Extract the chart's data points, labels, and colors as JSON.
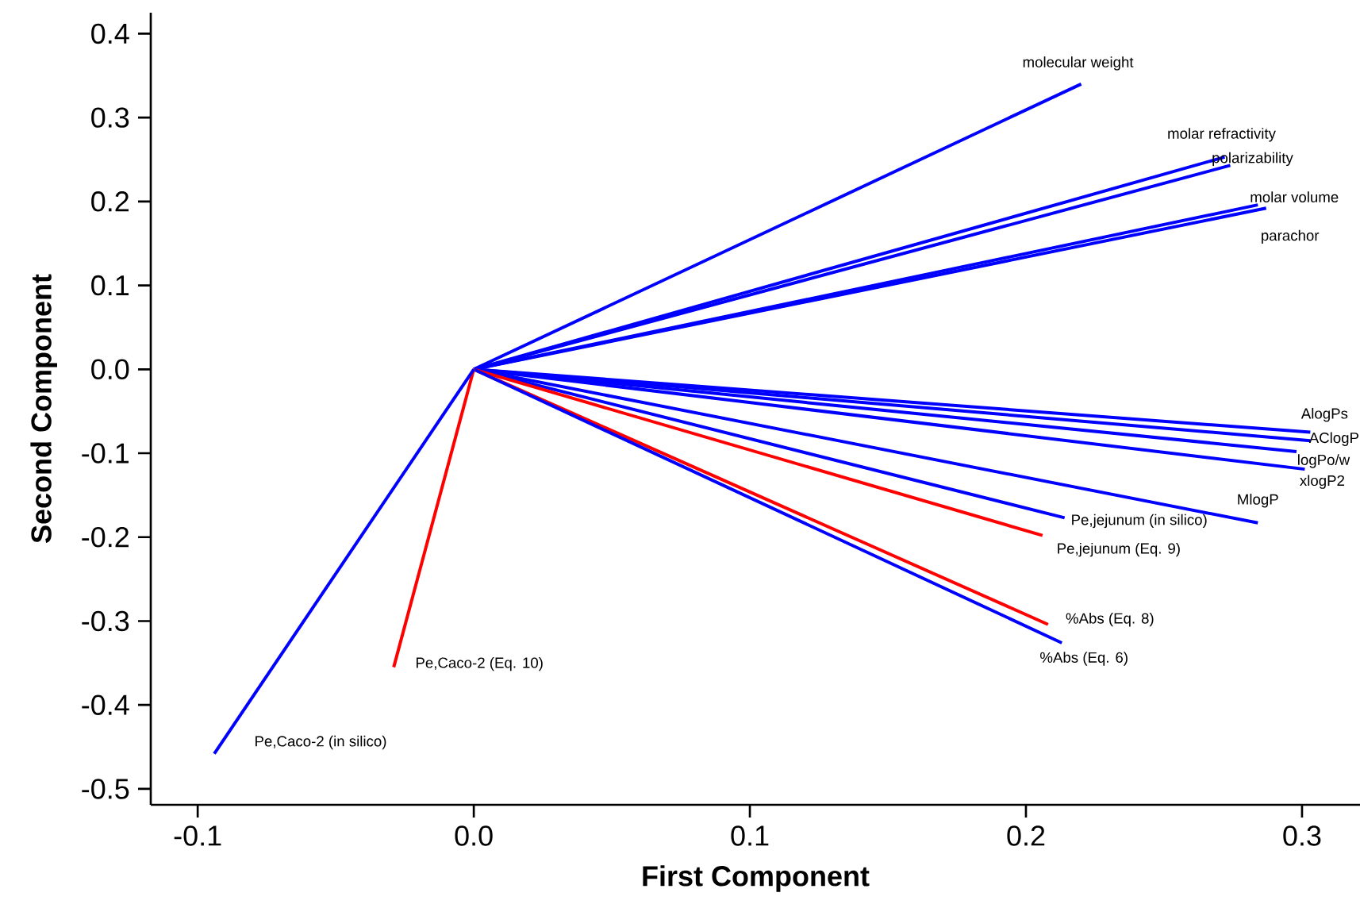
{
  "chart_data": {
    "type": "line",
    "xlabel": "First Component",
    "ylabel": "Second Component",
    "xlim": [
      -0.117,
      0.321
    ],
    "ylim": [
      -0.519,
      0.425
    ],
    "xticks": [
      -0.1,
      {
        "value": 0,
        "label": "0.0"
      },
      0.1,
      0.2,
      0.3
    ],
    "yticks": [
      -0.5,
      -0.4,
      -0.3,
      -0.2,
      -0.1,
      {
        "value": 0,
        "label": "0.0"
      },
      0.1,
      0.2,
      0.3,
      0.4
    ],
    "series": [
      {
        "name": "molecular weight",
        "color": "#0000ff",
        "x": [
          0,
          0.22
        ],
        "values": [
          0,
          0.34
        ]
      },
      {
        "name": "molar refractivity",
        "color": "#0000ff",
        "x": [
          0,
          0.272
        ],
        "values": [
          0,
          0.253
        ]
      },
      {
        "name": "polarizability",
        "color": "#0000ff",
        "x": [
          0,
          0.274
        ],
        "values": [
          0,
          0.243
        ]
      },
      {
        "name": "molar volume",
        "color": "#0000ff",
        "x": [
          0,
          0.284
        ],
        "values": [
          0,
          0.196
        ]
      },
      {
        "name": "parachor",
        "color": "#0000ff",
        "x": [
          0,
          0.287
        ],
        "values": [
          0,
          0.192
        ]
      },
      {
        "name": "AlogPs",
        "color": "#0000ff",
        "x": [
          0,
          0.303
        ],
        "values": [
          0,
          -0.075
        ]
      },
      {
        "name": "AClogP",
        "color": "#0000ff",
        "x": [
          0,
          0.303
        ],
        "values": [
          0,
          -0.085
        ]
      },
      {
        "name": "logPo/w",
        "color": "#0000ff",
        "x": [
          0,
          0.298
        ],
        "values": [
          0,
          -0.098
        ]
      },
      {
        "name": "xlogP2",
        "color": "#0000ff",
        "x": [
          0,
          0.301
        ],
        "values": [
          0,
          -0.119
        ]
      },
      {
        "name": "MlogP",
        "color": "#0000ff",
        "x": [
          0,
          0.284
        ],
        "values": [
          0,
          -0.183
        ]
      },
      {
        "name": "Pe,jejunum (in silico)",
        "color": "#0000ff",
        "x": [
          0,
          0.214
        ],
        "values": [
          0,
          -0.177
        ]
      },
      {
        "name": "Pe,jejunum (Eq. 9)",
        "color": "#ff0000",
        "x": [
          0,
          0.206
        ],
        "values": [
          0,
          -0.198
        ]
      },
      {
        "name": "%Abs (Eq. 8)",
        "color": "#ff0000",
        "x": [
          0,
          0.208
        ],
        "values": [
          0,
          -0.304
        ]
      },
      {
        "name": "%Abs (Eq. 6)",
        "color": "#0000ff",
        "x": [
          0,
          0.213
        ],
        "values": [
          0,
          -0.326
        ]
      },
      {
        "name": "Pe,Caco-2 (Eq. 10)",
        "color": "#ff0000",
        "x": [
          0,
          -0.029
        ],
        "values": [
          0,
          -0.355
        ]
      },
      {
        "name": "Pe,Caco-2 (in silico)",
        "color": "#0000ff",
        "x": [
          0,
          -0.094
        ],
        "values": [
          0,
          -0.458
        ]
      }
    ]
  }
}
